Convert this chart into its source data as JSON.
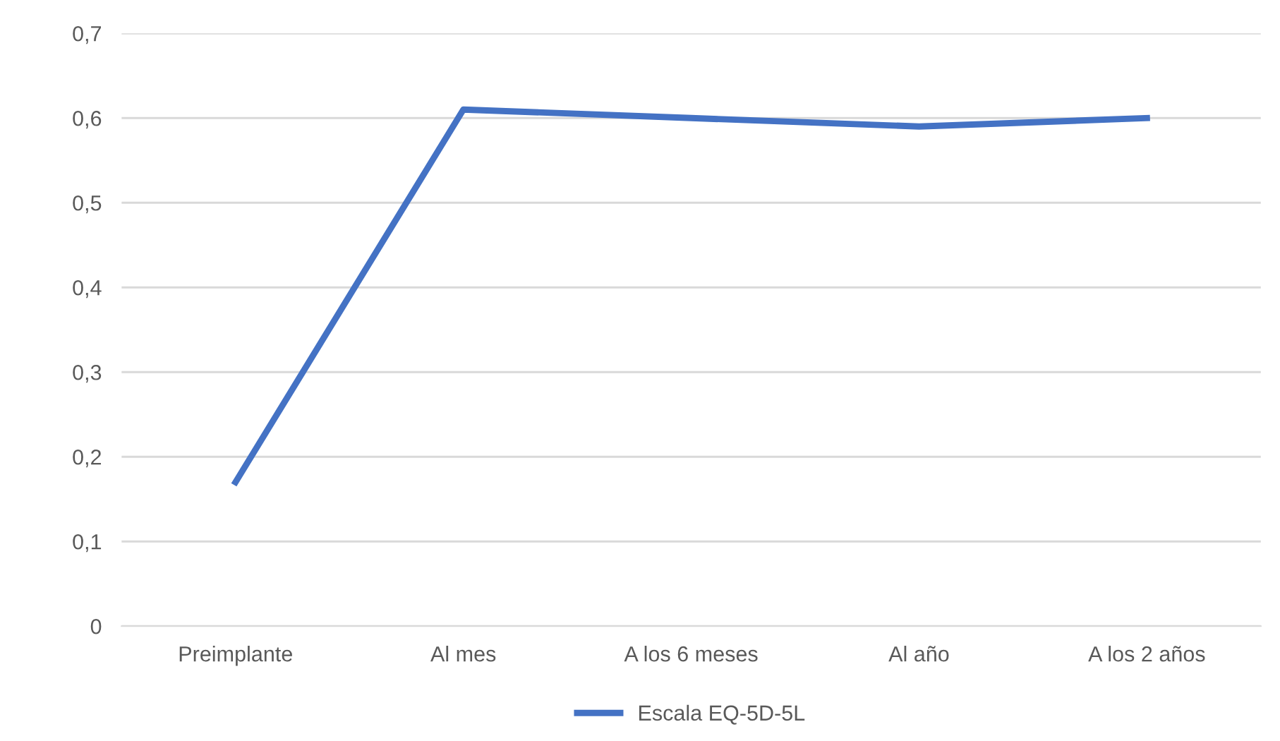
{
  "chart_data": {
    "type": "line",
    "categories": [
      "Preimplante",
      "Al mes",
      "A los 6 meses",
      "Al año",
      "A los 2 años"
    ],
    "series": [
      {
        "name": "Escala EQ-5D-5L",
        "color": "#4472c4",
        "values": [
          0.17,
          0.61,
          0.6,
          0.59,
          0.6
        ]
      }
    ],
    "ylim": [
      0,
      0.7
    ],
    "yticks": [
      0,
      {
        "value": 0.1,
        "label": "0,1"
      },
      {
        "value": 0.2,
        "label": "0,2"
      },
      {
        "value": 0.3,
        "label": "0,3"
      },
      {
        "value": 0.4,
        "label": "0,4"
      },
      {
        "value": 0.5,
        "label": "0,5"
      },
      {
        "value": 0.6,
        "label": "0,6"
      },
      {
        "value": 0.7,
        "label": "0,7"
      }
    ],
    "grid": "y",
    "legend": "bottom",
    "marker": "none",
    "line_style": "solid"
  }
}
